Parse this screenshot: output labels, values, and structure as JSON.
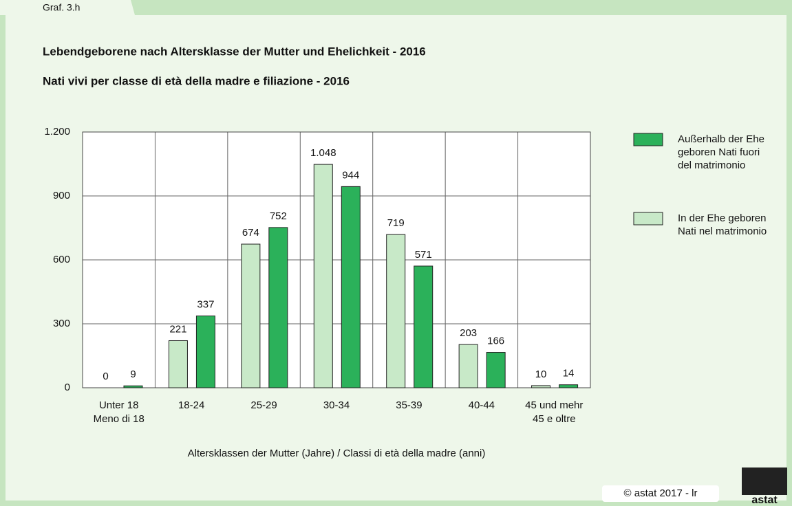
{
  "chart_data": {
    "type": "bar",
    "tag": "Graf. 3.h",
    "title": "Lebendgeborene nach Altersklasse der Mutter und Ehelichkeit - 2016",
    "subtitle": "Nati vivi per classe di età della madre e filiazione - 2016",
    "categories": [
      [
        "Unter 18",
        "Meno di 18"
      ],
      [
        "18-24"
      ],
      [
        "25-29"
      ],
      [
        "30-34"
      ],
      [
        "35-39"
      ],
      [
        "40-44"
      ],
      [
        "45 und mehr",
        "45 e oltre"
      ]
    ],
    "series": [
      {
        "name": "In der Ehe geboren Nati nel matrimonio",
        "color": "#c8e9c8",
        "values": [
          0,
          221,
          674,
          1048,
          719,
          203,
          10
        ],
        "value_labels": [
          "0",
          "221",
          "674",
          "1.048",
          "719",
          "203",
          "10"
        ]
      },
      {
        "name": "Außerhalb der Ehe geboren Nati fuori del matrimonio",
        "color": "#2bb15a",
        "values": [
          9,
          337,
          752,
          944,
          571,
          166,
          14
        ]
      }
    ],
    "ylim": [
      0,
      1200
    ],
    "yticks": [
      0,
      300,
      600,
      900,
      {
        "value": 1200,
        "label": "1.200"
      }
    ],
    "grid": true,
    "xlabel": "Altersklassen der Mutter (Jahre) / Classi di età della madre (anni)",
    "legend": "right",
    "copyright": "© astat 2017 - lr",
    "logo_text": "astat"
  }
}
